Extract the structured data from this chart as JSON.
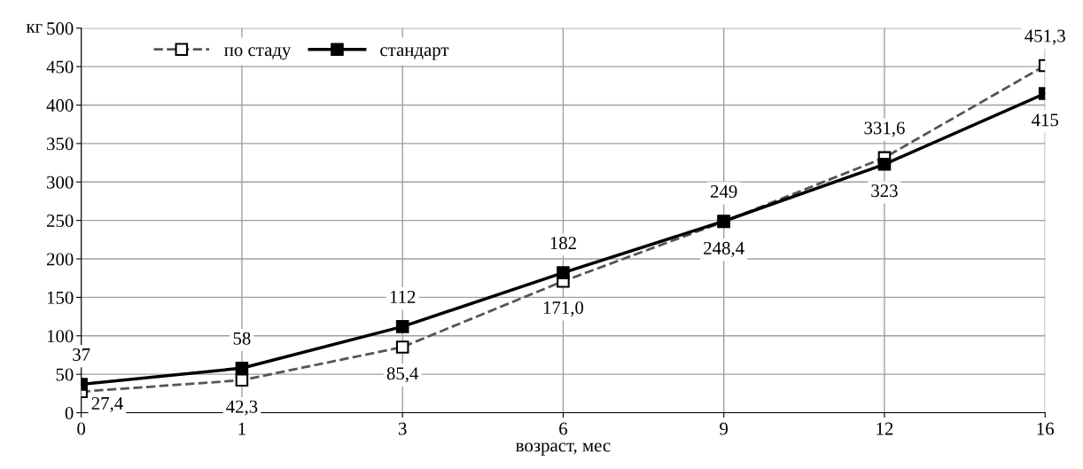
{
  "chart_data": {
    "type": "line",
    "ylabel": "кг",
    "xlabel": "возраст, мес",
    "categories": [
      "0",
      "1",
      "3",
      "6",
      "9",
      "12",
      "16"
    ],
    "ylim": [
      0,
      500
    ],
    "yticks": [
      0,
      50,
      100,
      150,
      200,
      250,
      300,
      350,
      400,
      450,
      500
    ],
    "grid": true,
    "legend": "top left",
    "series": [
      {
        "name": "по стаду",
        "color": "#555555",
        "values": [
          27.4,
          42.3,
          85.4,
          171.0,
          248.4,
          331.6,
          451.3
        ],
        "value_labels": [
          "27,4",
          "42,3",
          "85,4",
          "171,0",
          "248,4",
          "331,6",
          "451,3"
        ],
        "line_style": "dashed",
        "marker": "square"
      },
      {
        "name": "стандарт",
        "color": "#000000",
        "values": [
          37,
          58,
          112,
          182,
          249,
          323,
          415
        ],
        "value_labels": [
          "37",
          "58",
          "112",
          "182",
          "249",
          "323",
          "415"
        ],
        "line_style": "solid",
        "marker": "square"
      }
    ]
  }
}
